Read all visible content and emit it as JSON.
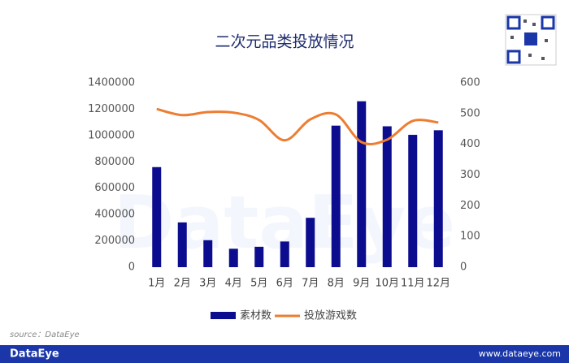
{
  "chart_data": {
    "type": "bar",
    "title": "二次元品类投放情况",
    "categories": [
      "1月",
      "2月",
      "3月",
      "4月",
      "5月",
      "6月",
      "7月",
      "8月",
      "9月",
      "10月",
      "11月",
      "12月"
    ],
    "series": [
      {
        "name": "素材数",
        "type": "bar",
        "color": "#0c0c8e",
        "values": [
          760000,
          340000,
          205000,
          140000,
          155000,
          195000,
          375000,
          1075000,
          1260000,
          1070000,
          1005000,
          1040000
        ]
      },
      {
        "name": "投放游戏数",
        "type": "line",
        "axis": "y2",
        "color": "#ed7d31",
        "values": [
          515,
          495,
          505,
          503,
          479,
          413,
          481,
          497,
          407,
          415,
          476,
          471
        ]
      }
    ],
    "ylim": [
      0,
      1400000
    ],
    "yticks": [
      0,
      200000,
      400000,
      600000,
      800000,
      1000000,
      1200000,
      1400000
    ],
    "y2lim": [
      0,
      600
    ],
    "y2ticks": [
      0,
      100,
      200,
      300,
      400,
      500,
      600
    ],
    "grid": false,
    "legend": "bottom",
    "source": "source：DataEye",
    "watermark": "DataEye",
    "footer": {
      "logo": "DataEye",
      "url": "www.dataeye.com"
    }
  }
}
